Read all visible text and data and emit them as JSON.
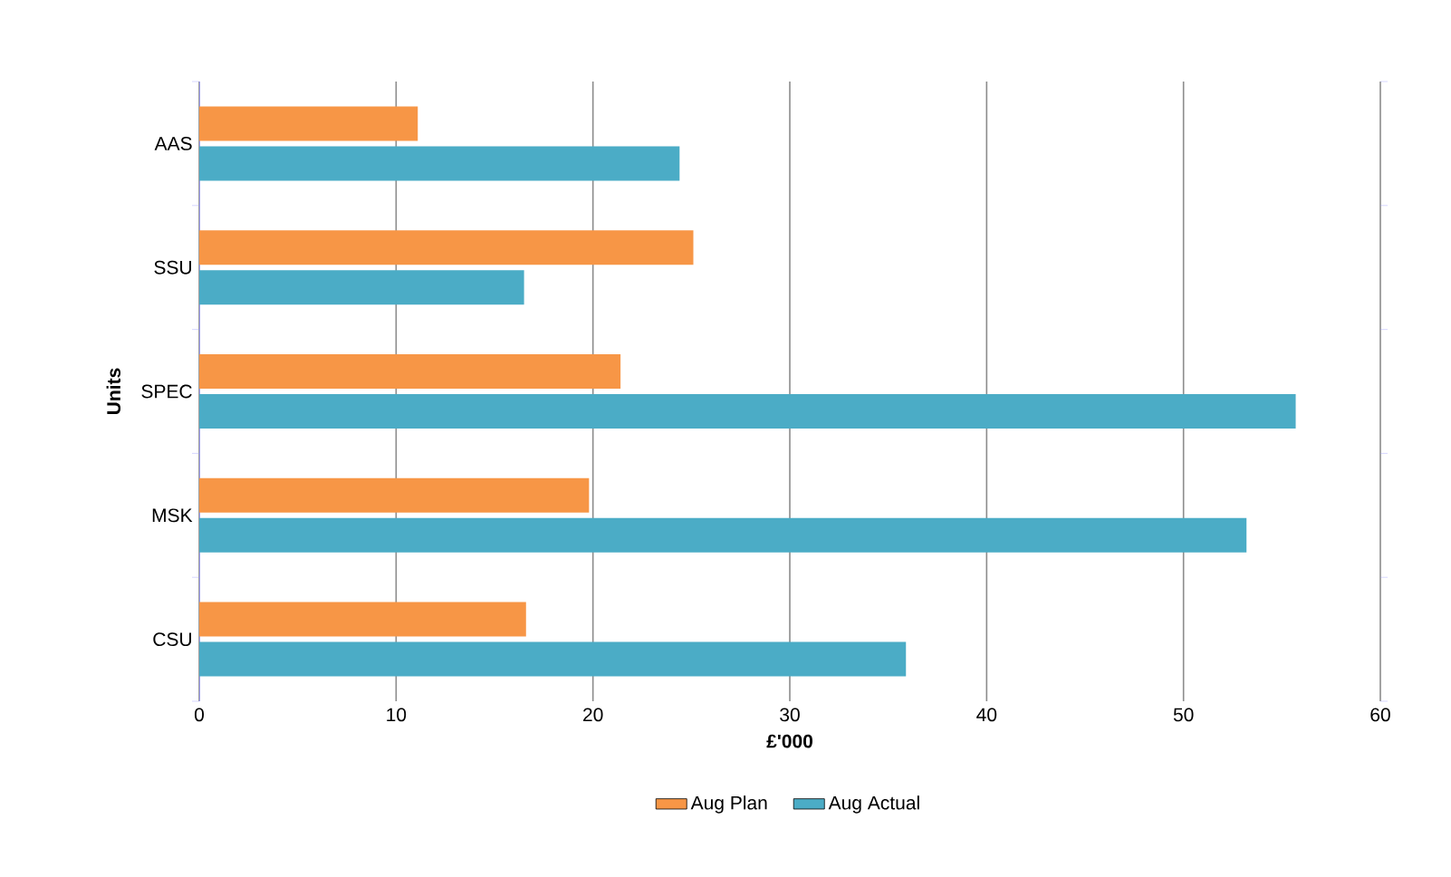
{
  "chart_data": {
    "type": "bar",
    "orientation": "horizontal",
    "xlabel": "£'000",
    "ylabel": "Units",
    "categories": [
      "AAS",
      "SSU",
      "SPEC",
      "MSK",
      "CSU"
    ],
    "series": [
      {
        "name": "Aug Plan",
        "color": "#f79646",
        "values": [
          11.1,
          25.1,
          21.4,
          19.8,
          16.6
        ]
      },
      {
        "name": "Aug Actual",
        "color": "#4bacc6",
        "values": [
          24.4,
          16.5,
          55.7,
          53.2,
          35.9
        ]
      }
    ],
    "xlim": [
      0,
      60
    ],
    "xticks": [
      0,
      10,
      20,
      30,
      40,
      50,
      60
    ],
    "grid": "x",
    "legend": "bottom"
  }
}
